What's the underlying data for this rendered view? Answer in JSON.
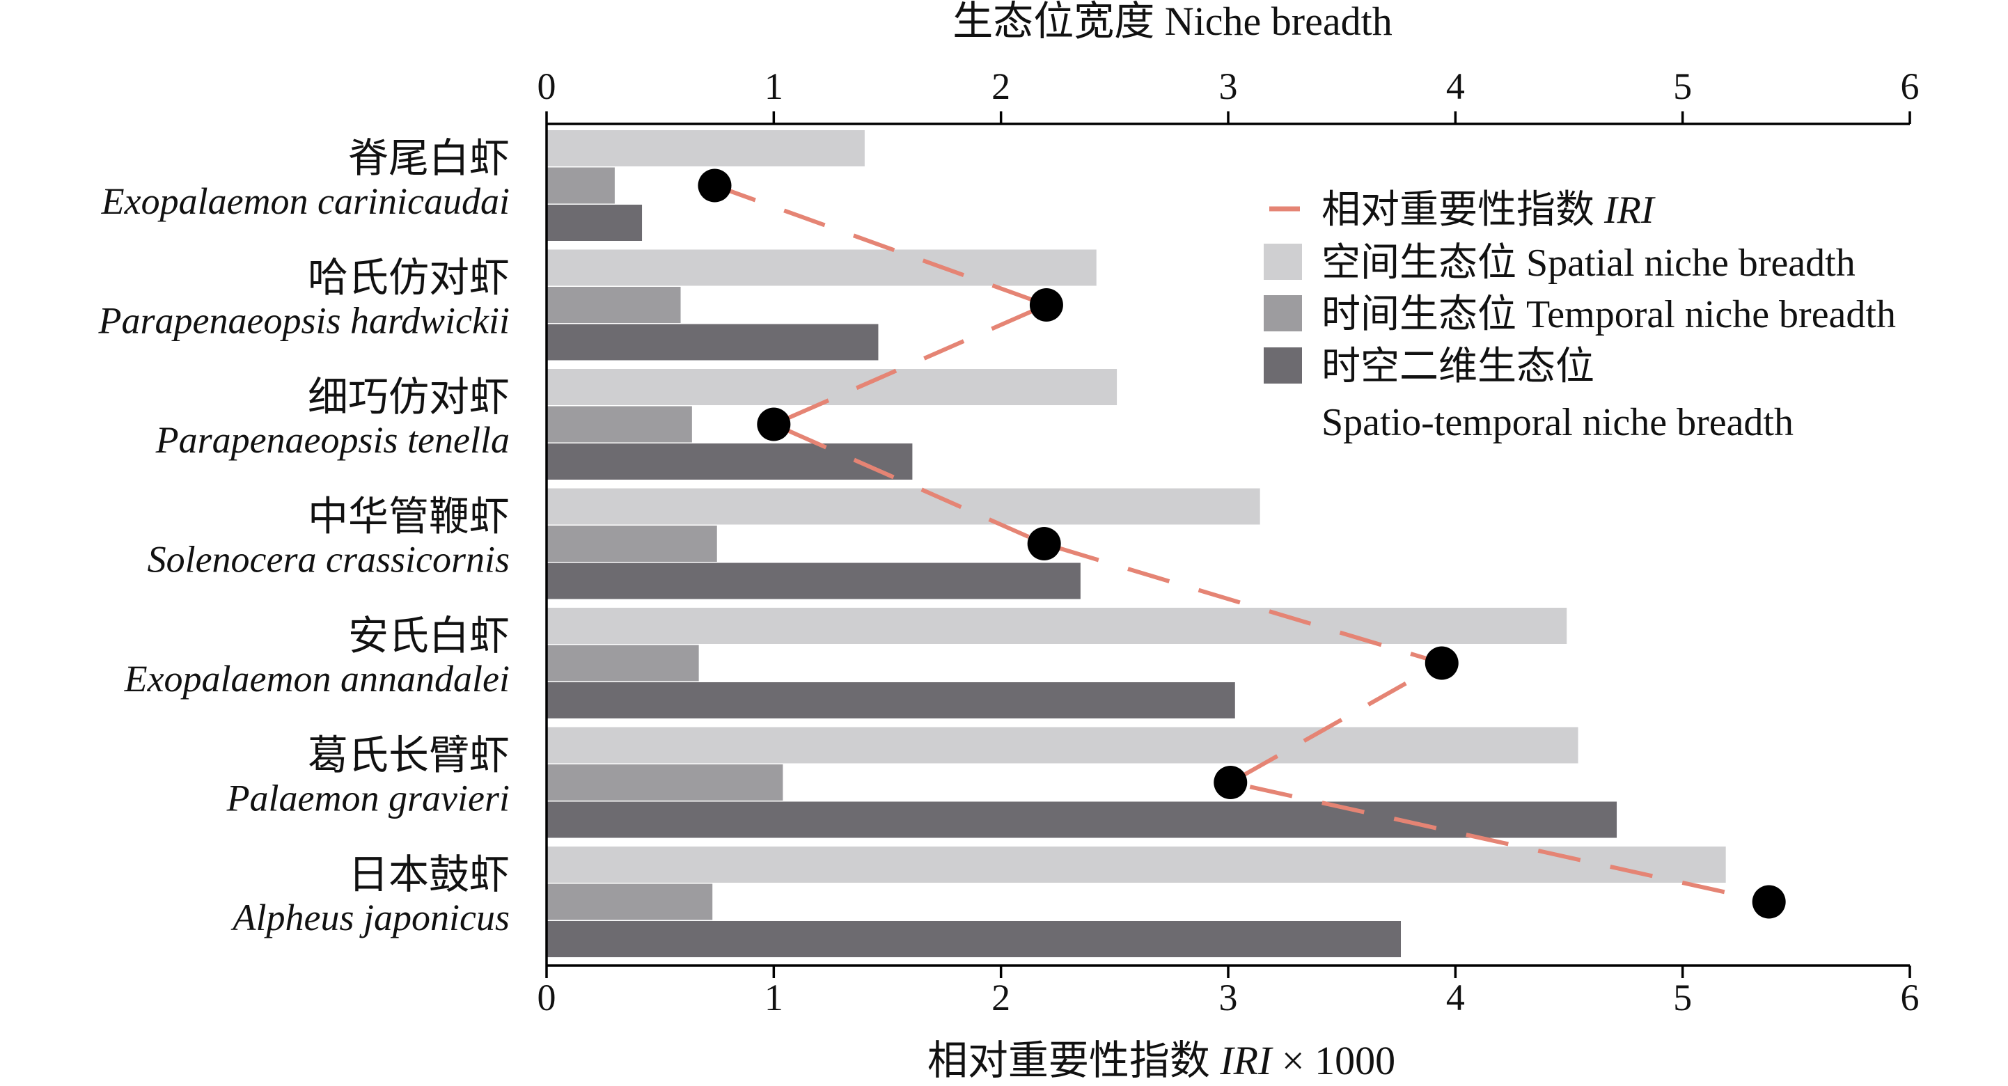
{
  "chart_data": {
    "type": "bar",
    "orientation": "horizontal",
    "categories": [
      {
        "cn": "脊尾白虾",
        "en": "Exopalaemon carinicaudai"
      },
      {
        "cn": "哈氏仿对虾",
        "en": "Parapenaeopsis hardwickii"
      },
      {
        "cn": "细巧仿对虾",
        "en": "Parapenaeopsis tenella"
      },
      {
        "cn": "中华管鞭虾",
        "en": "Solenocera crassicornis"
      },
      {
        "cn": "安氏白虾",
        "en": "Exopalaemon annandalei"
      },
      {
        "cn": "葛氏长臂虾",
        "en": "Palaemon gravieri"
      },
      {
        "cn": "日本鼓虾",
        "en": "Alpheus japonicus"
      }
    ],
    "series": [
      {
        "name": "空间生态位 Spatial niche breadth",
        "type": "bar",
        "axis": "top",
        "color": "#cfcfd1",
        "values": [
          1.4,
          2.42,
          2.51,
          3.14,
          4.49,
          4.54,
          5.19
        ]
      },
      {
        "name": "时间生态位 Temporal niche breadth",
        "type": "bar",
        "axis": "top",
        "color": "#9d9c9f",
        "values": [
          0.3,
          0.59,
          0.64,
          0.75,
          0.67,
          1.04,
          0.73
        ]
      },
      {
        "name_line1": "时空二维生态位",
        "name_line2": "Spatio-temporal niche breadth",
        "type": "bar",
        "axis": "top",
        "color": "#6d6b70",
        "values": [
          0.42,
          1.46,
          1.61,
          2.35,
          3.03,
          4.71,
          3.76
        ]
      },
      {
        "name_prefix": "相对重要性指数 ",
        "name_italic": "IRI",
        "type": "line",
        "axis": "bottom",
        "color": "#e58474",
        "values": [
          0.74,
          2.2,
          1.0,
          2.19,
          3.94,
          3.01,
          5.38
        ]
      }
    ],
    "top_axis": {
      "title": "生态位宽度 Niche breadth",
      "range": [
        0,
        6
      ],
      "ticks": [
        "0",
        "1",
        "2",
        "3",
        "4",
        "5",
        "6"
      ]
    },
    "bottom_axis": {
      "title_prefix": "相对重要性指数 ",
      "title_italic": "IRI",
      "title_suffix": " × 1000",
      "range": [
        0,
        6
      ],
      "ticks": [
        "0",
        "1",
        "2",
        "3",
        "4",
        "5",
        "6"
      ]
    },
    "legend_position": "top-right",
    "grid": false
  }
}
